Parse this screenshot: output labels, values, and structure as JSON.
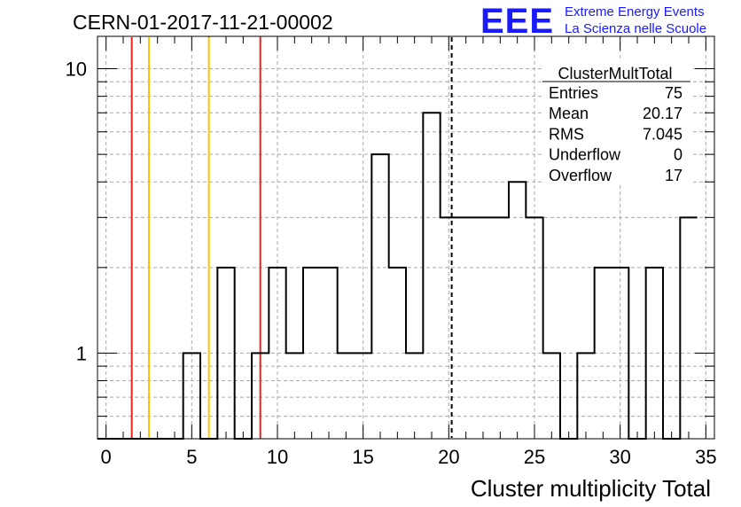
{
  "header": {
    "title": "CERN-01-2017-11-21-00002",
    "logo_letters": "EEE",
    "logo_line1": "Extreme Energy Events",
    "logo_line2": "La Scienza nelle Scuole"
  },
  "stats": {
    "name": "ClusterMultTotal",
    "rows": [
      {
        "label": "Entries",
        "value": "75"
      },
      {
        "label": "Mean",
        "value": "20.17"
      },
      {
        "label": "RMS",
        "value": "7.045"
      },
      {
        "label": "Underflow",
        "value": "0"
      },
      {
        "label": "Overflow",
        "value": "17"
      }
    ]
  },
  "colors": {
    "red_line": "#e8221b",
    "yellow_line": "#ffc400",
    "logo": "#1a1aff"
  },
  "chart_data": {
    "type": "bar",
    "histogram": true,
    "title": "CERN-01-2017-11-21-00002",
    "xlabel": "Cluster multiplicity Total",
    "ylabel": "",
    "xlim": [
      -0.5,
      35.5
    ],
    "ylim": [
      0.5,
      13
    ],
    "yscale": "log",
    "grid": true,
    "bin_edges_start": -0.5,
    "bin_width": 1,
    "values": [
      0,
      0,
      0,
      0,
      0,
      1,
      0,
      2,
      0,
      1,
      2,
      1,
      2,
      2,
      1,
      1,
      5,
      2,
      1,
      7,
      3,
      3,
      3,
      3,
      4,
      3,
      1,
      0,
      1,
      2,
      2,
      0,
      2,
      0,
      3
    ],
    "x_ticks": [
      "0",
      "5",
      "10",
      "15",
      "20",
      "25",
      "30",
      "35"
    ],
    "y_ticks": [
      "1",
      "10"
    ],
    "vertical_lines": [
      {
        "x": 1.5,
        "color": "red"
      },
      {
        "x": 2.5,
        "color": "yellow"
      },
      {
        "x": 6.0,
        "color": "yellow"
      },
      {
        "x": 9.0,
        "color": "red"
      },
      {
        "x": 20.17,
        "color": "black",
        "style": "dashed"
      }
    ]
  }
}
